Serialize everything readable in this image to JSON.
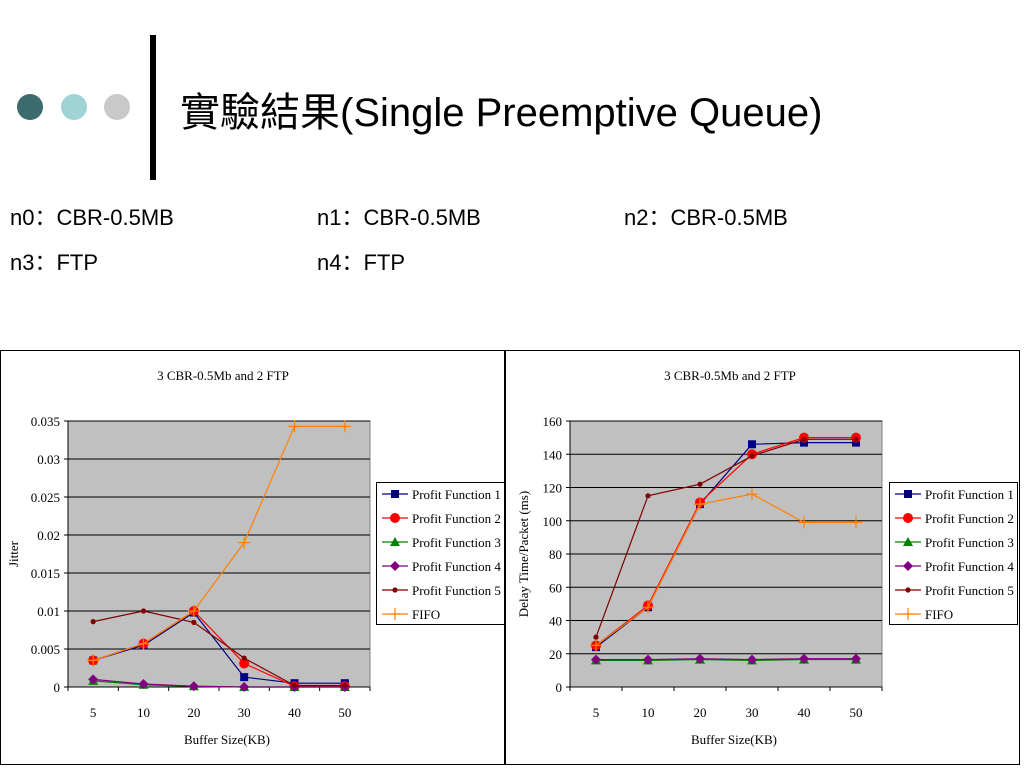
{
  "slide": {
    "title": "實驗結果(Single Preemptive Queue)",
    "info": [
      "n0：CBR-0.5MB",
      "n1：CBR-0.5MB",
      "n2：CBR-0.5MB",
      "n3：FTP",
      "n4：FTP"
    ]
  },
  "colors": {
    "dot1": "#3b6b6f",
    "dot2": "#9fd3d6",
    "dot3": "#c9c9c9",
    "plot_bg": "#c0c0c0"
  },
  "chart_data": [
    {
      "type": "line",
      "title": "3 CBR-0.5Mb and 2 FTP",
      "xlabel": "Buffer Size(KB)",
      "ylabel": "Jitter",
      "categories": [
        "5",
        "10",
        "20",
        "30",
        "40",
        "50"
      ],
      "ylim": [
        0,
        0.035
      ],
      "yticks": [
        "0",
        "0.005",
        "0.01",
        "0.015",
        "0.02",
        "0.025",
        "0.03",
        "0.035"
      ],
      "grid": true,
      "legend": "right",
      "series": [
        {
          "name": "Profit Function 1",
          "color": "#000080",
          "marker": "square",
          "values": [
            0.0035,
            0.0055,
            0.0098,
            0.0013,
            0.0005,
            0.0005
          ]
        },
        {
          "name": "Profit Function 2",
          "color": "#ff0000",
          "marker": "circle",
          "values": [
            0.0035,
            0.0057,
            0.01,
            0.0031,
            0.0001,
            0.0001
          ]
        },
        {
          "name": "Profit Function 3",
          "color": "#008000",
          "marker": "triangle",
          "values": [
            0.0008,
            0.0003,
            0.0001,
            0.0,
            0.0,
            0.0
          ]
        },
        {
          "name": "Profit Function 4",
          "color": "#800080",
          "marker": "diamond",
          "values": [
            0.001,
            0.0004,
            0.0001,
            0.0,
            0.0,
            0.0
          ]
        },
        {
          "name": "Profit Function 5",
          "color": "#800000",
          "marker": "smallcircle",
          "values": [
            0.0086,
            0.01,
            0.0085,
            0.0038,
            0.0002,
            0.0002
          ]
        },
        {
          "name": "FIFO",
          "color": "#ff8000",
          "marker": "plus",
          "values": [
            0.0035,
            0.0057,
            0.01,
            0.019,
            0.0343,
            0.0343
          ]
        }
      ]
    },
    {
      "type": "line",
      "title": "3 CBR-0.5Mb and 2 FTP",
      "xlabel": "Buffer Size(KB)",
      "ylabel": "Delay Time/Packet (ms)",
      "categories": [
        "5",
        "10",
        "20",
        "30",
        "40",
        "50"
      ],
      "ylim": [
        0,
        160
      ],
      "yticks": [
        "0",
        "20",
        "40",
        "60",
        "80",
        "100",
        "120",
        "140",
        "160"
      ],
      "grid": true,
      "legend": "right",
      "series": [
        {
          "name": "Profit Function 1",
          "color": "#000080",
          "marker": "square",
          "values": [
            24,
            48,
            110,
            146,
            147,
            147
          ]
        },
        {
          "name": "Profit Function 2",
          "color": "#ff0000",
          "marker": "circle",
          "values": [
            25,
            49,
            111,
            140,
            150,
            150
          ]
        },
        {
          "name": "Profit Function 3",
          "color": "#008000",
          "marker": "triangle",
          "values": [
            16,
            16,
            16.5,
            16,
            16.5,
            16.5
          ]
        },
        {
          "name": "Profit Function 4",
          "color": "#800080",
          "marker": "diamond",
          "values": [
            16.5,
            16.5,
            17,
            16.5,
            17,
            17
          ]
        },
        {
          "name": "Profit Function 5",
          "color": "#800000",
          "marker": "smallcircle",
          "values": [
            30,
            115,
            122,
            139,
            149,
            149
          ]
        },
        {
          "name": "FIFO",
          "color": "#ff8000",
          "marker": "plus",
          "values": [
            25,
            48,
            110,
            116,
            99,
            99
          ]
        }
      ]
    }
  ]
}
